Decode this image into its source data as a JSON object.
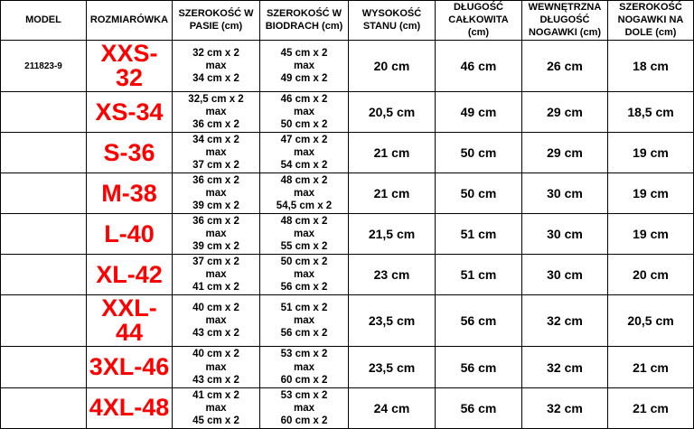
{
  "colors": {
    "size_label": "#ff0000",
    "text": "#000000",
    "border": "#000000",
    "background": "#ffffff"
  },
  "table": {
    "headers": [
      "MODEL",
      "ROZMIARÓWKA",
      "SZEROKOŚĆ W PASIE (cm)",
      "SZEROKOŚĆ W BIODRACH (cm)",
      "WYSOKOŚĆ STANU (cm)",
      "DŁUGOŚĆ CAŁKOWITA (cm)",
      "WEWNĘTRZNA DŁUGOŚĆ NOGAWKI (cm)",
      "SZEROKOŚĆ NOGAWKI NA DOLE (cm)"
    ],
    "rows": [
      {
        "model": "211823-9",
        "size": "XXS-32",
        "waist_lines": [
          "32 cm x 2",
          "max",
          "34 cm x 2"
        ],
        "hips_lines": [
          "45 cm x 2",
          "max",
          "49 cm x 2"
        ],
        "rise": "20 cm",
        "length": "46 cm",
        "inseam": "26 cm",
        "leg": "18 cm"
      },
      {
        "model": "",
        "size": "XS-34",
        "waist_lines": [
          "32,5 cm x 2",
          "max",
          "36 cm x 2"
        ],
        "hips_lines": [
          "46 cm x 2",
          "max",
          "50 cm x 2"
        ],
        "rise": "20,5 cm",
        "length": "49 cm",
        "inseam": "29 cm",
        "leg": "18,5 cm"
      },
      {
        "model": "",
        "size": "S-36",
        "waist_lines": [
          "34 cm x 2",
          "max",
          "37 cm x 2"
        ],
        "hips_lines": [
          "47 cm x 2",
          "max",
          "54 cm x 2"
        ],
        "rise": "21 cm",
        "length": "50 cm",
        "inseam": "29 cm",
        "leg": "19 cm"
      },
      {
        "model": "",
        "size": "M-38",
        "waist_lines": [
          "36 cm x 2",
          "max",
          "39 cm x 2"
        ],
        "hips_lines": [
          "48 cm x 2",
          "max",
          "54,5 cm x 2"
        ],
        "rise": "21 cm",
        "length": "50 cm",
        "inseam": "30 cm",
        "leg": "19 cm"
      },
      {
        "model": "",
        "size": "L-40",
        "waist_lines": [
          "36 cm x 2",
          "max",
          "39 cm x 2"
        ],
        "hips_lines": [
          "48 cm x 2",
          "max",
          "55 cm x 2"
        ],
        "rise": "21,5 cm",
        "length": "51 cm",
        "inseam": "30 cm",
        "leg": "19 cm"
      },
      {
        "model": "",
        "size": "XL-42",
        "waist_lines": [
          "37 cm x 2",
          "max",
          "41 cm x 2"
        ],
        "hips_lines": [
          "50 cm x 2",
          "max",
          "56 cm x 2"
        ],
        "rise": "23 cm",
        "length": "51 cm",
        "inseam": "30 cm",
        "leg": "20 cm"
      },
      {
        "model": "",
        "size": "XXL-44",
        "waist_lines": [
          "40 cm x 2",
          "max",
          "43 cm x 2"
        ],
        "hips_lines": [
          "51 cm x 2",
          "max",
          "56 cm x 2"
        ],
        "rise": "23,5 cm",
        "length": "56 cm",
        "inseam": "32 cm",
        "leg": "20,5 cm"
      },
      {
        "model": "",
        "size": "3XL-46",
        "waist_lines": [
          "40 cm x 2",
          "max",
          "43 cm x 2"
        ],
        "hips_lines": [
          "53 cm x 2",
          "max",
          "60 cm x 2"
        ],
        "rise": "23,5 cm",
        "length": "56 cm",
        "inseam": "32 cm",
        "leg": "21 cm"
      },
      {
        "model": "",
        "size": "4XL-48",
        "waist_lines": [
          "41 cm x 2",
          "max",
          "45 cm x 2"
        ],
        "hips_lines": [
          "53 cm x 2",
          "max",
          "60 cm x 2"
        ],
        "rise": "24 cm",
        "length": "56 cm",
        "inseam": "32 cm",
        "leg": "21 cm"
      }
    ]
  }
}
